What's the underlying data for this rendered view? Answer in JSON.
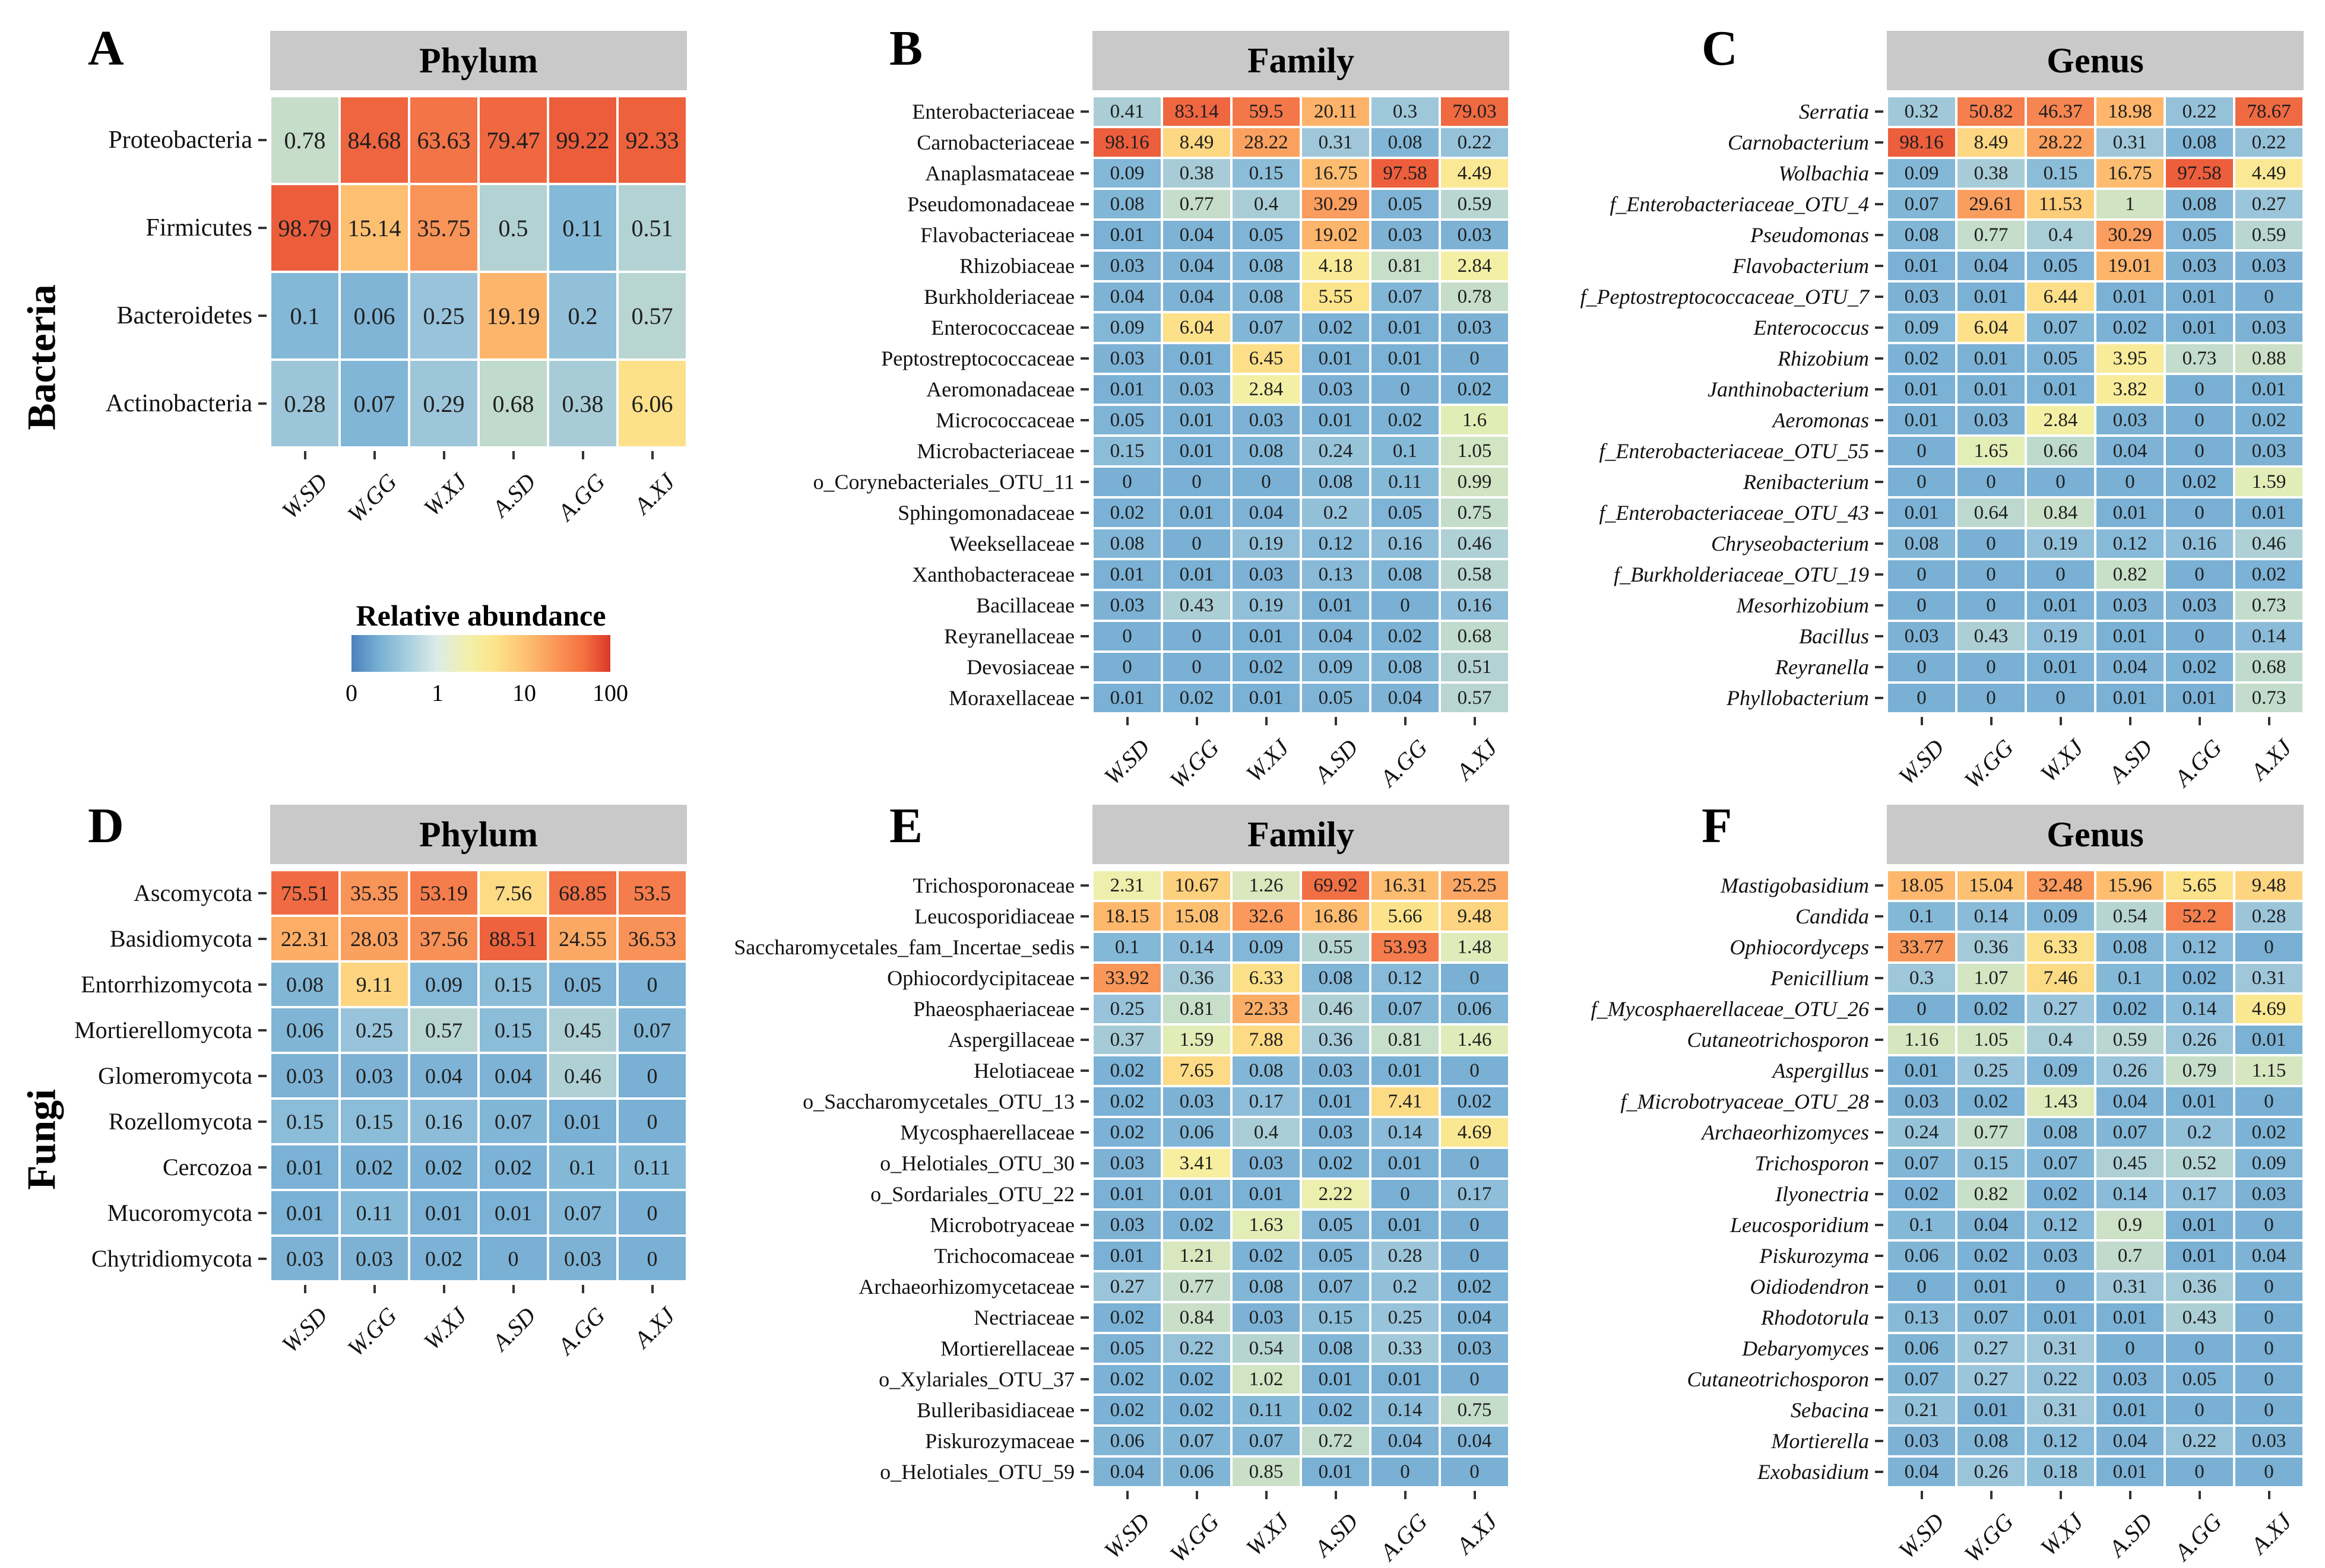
{
  "side_labels": {
    "top": "Bacteria",
    "bottom": "Fungi"
  },
  "samples": [
    "W.SD",
    "W.GG",
    "W.XJ",
    "A.SD",
    "A.GG",
    "A.XJ"
  ],
  "legend": {
    "title": "Relative abundance",
    "ticks": [
      "0",
      "1",
      "10",
      "100"
    ],
    "scale": "pseudo-log",
    "domain": [
      0,
      100
    ],
    "colors_low_to_high": [
      "#4c80bd",
      "#a8cfe0",
      "#f2f0ac",
      "#fdc273",
      "#f4703f",
      "#da382a"
    ]
  },
  "chart_data": [
    {
      "type": "heatmap",
      "panel_letter": "A",
      "title": "Phylum",
      "group": "Bacteria",
      "italic_rows": false,
      "categories": [
        "W.SD",
        "W.GG",
        "W.XJ",
        "A.SD",
        "A.GG",
        "A.XJ"
      ],
      "rows": [
        "Proteobacteria",
        "Firmicutes",
        "Bacteroidetes",
        "Actinobacteria"
      ],
      "values": [
        [
          "0.78",
          "84.68",
          "63.63",
          "79.47",
          "99.22",
          "92.33"
        ],
        [
          "98.79",
          "15.14",
          "35.75",
          "0.5",
          "0.11",
          "0.51"
        ],
        [
          "0.1",
          "0.06",
          "0.25",
          "19.19",
          "0.2",
          "0.57"
        ],
        [
          "0.28",
          "0.07",
          "0.29",
          "0.68",
          "0.38",
          "6.06"
        ]
      ]
    },
    {
      "type": "heatmap",
      "panel_letter": "B",
      "title": "Family",
      "group": "Bacteria",
      "italic_rows": false,
      "categories": [
        "W.SD",
        "W.GG",
        "W.XJ",
        "A.SD",
        "A.GG",
        "A.XJ"
      ],
      "rows": [
        "Enterobacteriaceae",
        "Carnobacteriaceae",
        "Anaplasmataceae",
        "Pseudomonadaceae",
        "Flavobacteriaceae",
        "Rhizobiaceae",
        "Burkholderiaceae",
        "Enterococcaceae",
        "Peptostreptococcaceae",
        "Aeromonadaceae",
        "Micrococcaceae",
        "Microbacteriaceae",
        "o_Corynebacteriales_OTU_11",
        "Sphingomonadaceae",
        "Weeksellaceae",
        "Xanthobacteraceae",
        "Bacillaceae",
        "Reyranellaceae",
        "Devosiaceae",
        "Moraxellaceae"
      ],
      "values": [
        [
          "0.41",
          "83.14",
          "59.5",
          "20.11",
          "0.3",
          "79.03"
        ],
        [
          "98.16",
          "8.49",
          "28.22",
          "0.31",
          "0.08",
          "0.22"
        ],
        [
          "0.09",
          "0.38",
          "0.15",
          "16.75",
          "97.58",
          "4.49"
        ],
        [
          "0.08",
          "0.77",
          "0.4",
          "30.29",
          "0.05",
          "0.59"
        ],
        [
          "0.01",
          "0.04",
          "0.05",
          "19.02",
          "0.03",
          "0.03"
        ],
        [
          "0.03",
          "0.04",
          "0.08",
          "4.18",
          "0.81",
          "2.84"
        ],
        [
          "0.04",
          "0.04",
          "0.08",
          "5.55",
          "0.07",
          "0.78"
        ],
        [
          "0.09",
          "6.04",
          "0.07",
          "0.02",
          "0.01",
          "0.03"
        ],
        [
          "0.03",
          "0.01",
          "6.45",
          "0.01",
          "0.01",
          "0"
        ],
        [
          "0.01",
          "0.03",
          "2.84",
          "0.03",
          "0",
          "0.02"
        ],
        [
          "0.05",
          "0.01",
          "0.03",
          "0.01",
          "0.02",
          "1.6"
        ],
        [
          "0.15",
          "0.01",
          "0.08",
          "0.24",
          "0.1",
          "1.05"
        ],
        [
          "0",
          "0",
          "0",
          "0.08",
          "0.11",
          "0.99"
        ],
        [
          "0.02",
          "0.01",
          "0.04",
          "0.2",
          "0.05",
          "0.75"
        ],
        [
          "0.08",
          "0",
          "0.19",
          "0.12",
          "0.16",
          "0.46"
        ],
        [
          "0.01",
          "0.01",
          "0.03",
          "0.13",
          "0.08",
          "0.58"
        ],
        [
          "0.03",
          "0.43",
          "0.19",
          "0.01",
          "0",
          "0.16"
        ],
        [
          "0",
          "0",
          "0.01",
          "0.04",
          "0.02",
          "0.68"
        ],
        [
          "0",
          "0",
          "0.02",
          "0.09",
          "0.08",
          "0.51"
        ],
        [
          "0.01",
          "0.02",
          "0.01",
          "0.05",
          "0.04",
          "0.57"
        ]
      ]
    },
    {
      "type": "heatmap",
      "panel_letter": "C",
      "title": "Genus",
      "group": "Bacteria",
      "italic_rows": true,
      "categories": [
        "W.SD",
        "W.GG",
        "W.XJ",
        "A.SD",
        "A.GG",
        "A.XJ"
      ],
      "rows": [
        "Serratia",
        "Carnobacterium",
        "Wolbachia",
        "f_Enterobacteriaceae_OTU_4",
        "Pseudomonas",
        "Flavobacterium",
        "f_Peptostreptococcaceae_OTU_7",
        "Enterococcus",
        "Rhizobium",
        "Janthinobacterium",
        "Aeromonas",
        "f_Enterobacteriaceae_OTU_55",
        "Renibacterium",
        "f_Enterobacteriaceae_OTU_43",
        "Chryseobacterium",
        "f_Burkholderiaceae_OTU_19",
        "Mesorhizobium",
        "Bacillus",
        "Reyranella",
        "Phyllobacterium"
      ],
      "values": [
        [
          "0.32",
          "50.82",
          "46.37",
          "18.98",
          "0.22",
          "78.67"
        ],
        [
          "98.16",
          "8.49",
          "28.22",
          "0.31",
          "0.08",
          "0.22"
        ],
        [
          "0.09",
          "0.38",
          "0.15",
          "16.75",
          "97.58",
          "4.49"
        ],
        [
          "0.07",
          "29.61",
          "11.53",
          "1",
          "0.08",
          "0.27"
        ],
        [
          "0.08",
          "0.77",
          "0.4",
          "30.29",
          "0.05",
          "0.59"
        ],
        [
          "0.01",
          "0.04",
          "0.05",
          "19.01",
          "0.03",
          "0.03"
        ],
        [
          "0.03",
          "0.01",
          "6.44",
          "0.01",
          "0.01",
          "0"
        ],
        [
          "0.09",
          "6.04",
          "0.07",
          "0.02",
          "0.01",
          "0.03"
        ],
        [
          "0.02",
          "0.01",
          "0.05",
          "3.95",
          "0.73",
          "0.88"
        ],
        [
          "0.01",
          "0.01",
          "0.01",
          "3.82",
          "0",
          "0.01"
        ],
        [
          "0.01",
          "0.03",
          "2.84",
          "0.03",
          "0",
          "0.02"
        ],
        [
          "0",
          "1.65",
          "0.66",
          "0.04",
          "0",
          "0.03"
        ],
        [
          "0",
          "0",
          "0",
          "0",
          "0.02",
          "1.59"
        ],
        [
          "0.01",
          "0.64",
          "0.84",
          "0.01",
          "0",
          "0.01"
        ],
        [
          "0.08",
          "0",
          "0.19",
          "0.12",
          "0.16",
          "0.46"
        ],
        [
          "0",
          "0",
          "0",
          "0.82",
          "0",
          "0.02"
        ],
        [
          "0",
          "0",
          "0.01",
          "0.03",
          "0.03",
          "0.73"
        ],
        [
          "0.03",
          "0.43",
          "0.19",
          "0.01",
          "0",
          "0.14"
        ],
        [
          "0",
          "0",
          "0.01",
          "0.04",
          "0.02",
          "0.68"
        ],
        [
          "0",
          "0",
          "0",
          "0.01",
          "0.01",
          "0.73"
        ]
      ]
    },
    {
      "type": "heatmap",
      "panel_letter": "D",
      "title": "Phylum",
      "group": "Fungi",
      "italic_rows": false,
      "categories": [
        "W.SD",
        "W.GG",
        "W.XJ",
        "A.SD",
        "A.GG",
        "A.XJ"
      ],
      "rows": [
        "Ascomycota",
        "Basidiomycota",
        "Entorrhizomycota",
        "Mortierellomycota",
        "Glomeromycota",
        "Rozellomycota",
        "Cercozoa",
        "Mucoromycota",
        "Chytridiomycota"
      ],
      "values": [
        [
          "75.51",
          "35.35",
          "53.19",
          "7.56",
          "68.85",
          "53.5"
        ],
        [
          "22.31",
          "28.03",
          "37.56",
          "88.51",
          "24.55",
          "36.53"
        ],
        [
          "0.08",
          "9.11",
          "0.09",
          "0.15",
          "0.05",
          "0"
        ],
        [
          "0.06",
          "0.25",
          "0.57",
          "0.15",
          "0.45",
          "0.07"
        ],
        [
          "0.03",
          "0.03",
          "0.04",
          "0.04",
          "0.46",
          "0"
        ],
        [
          "0.15",
          "0.15",
          "0.16",
          "0.07",
          "0.01",
          "0"
        ],
        [
          "0.01",
          "0.02",
          "0.02",
          "0.02",
          "0.1",
          "0.11"
        ],
        [
          "0.01",
          "0.11",
          "0.01",
          "0.01",
          "0.07",
          "0"
        ],
        [
          "0.03",
          "0.03",
          "0.02",
          "0",
          "0.03",
          "0"
        ]
      ]
    },
    {
      "type": "heatmap",
      "panel_letter": "E",
      "title": "Family",
      "group": "Fungi",
      "italic_rows": false,
      "categories": [
        "W.SD",
        "W.GG",
        "W.XJ",
        "A.SD",
        "A.GG",
        "A.XJ"
      ],
      "rows": [
        "Trichosporonaceae",
        "Leucosporidiaceae",
        "Saccharomycetales_fam_Incertae_sedis",
        "Ophiocordycipitaceae",
        "Phaeosphaeriaceae",
        "Aspergillaceae",
        "Helotiaceae",
        "o_Saccharomycetales_OTU_13",
        "Mycosphaerellaceae",
        "o_Helotiales_OTU_30",
        "o_Sordariales_OTU_22",
        "Microbotryaceae",
        "Trichocomaceae",
        "Archaeorhizomycetaceae",
        "Nectriaceae",
        "Mortierellaceae",
        "o_Xylariales_OTU_37",
        "Bulleribasidiaceae",
        "Piskurozymaceae",
        "o_Helotiales_OTU_59"
      ],
      "values": [
        [
          "2.31",
          "10.67",
          "1.26",
          "69.92",
          "16.31",
          "25.25"
        ],
        [
          "18.15",
          "15.08",
          "32.6",
          "16.86",
          "5.66",
          "9.48"
        ],
        [
          "0.1",
          "0.14",
          "0.09",
          "0.55",
          "53.93",
          "1.48"
        ],
        [
          "33.92",
          "0.36",
          "6.33",
          "0.08",
          "0.12",
          "0"
        ],
        [
          "0.25",
          "0.81",
          "22.33",
          "0.46",
          "0.07",
          "0.06"
        ],
        [
          "0.37",
          "1.59",
          "7.88",
          "0.36",
          "0.81",
          "1.46"
        ],
        [
          "0.02",
          "7.65",
          "0.08",
          "0.03",
          "0.01",
          "0"
        ],
        [
          "0.02",
          "0.03",
          "0.17",
          "0.01",
          "7.41",
          "0.02"
        ],
        [
          "0.02",
          "0.06",
          "0.4",
          "0.03",
          "0.14",
          "4.69"
        ],
        [
          "0.03",
          "3.41",
          "0.03",
          "0.02",
          "0.01",
          "0"
        ],
        [
          "0.01",
          "0.01",
          "0.01",
          "2.22",
          "0",
          "0.17"
        ],
        [
          "0.03",
          "0.02",
          "1.63",
          "0.05",
          "0.01",
          "0"
        ],
        [
          "0.01",
          "1.21",
          "0.02",
          "0.05",
          "0.28",
          "0"
        ],
        [
          "0.27",
          "0.77",
          "0.08",
          "0.07",
          "0.2",
          "0.02"
        ],
        [
          "0.02",
          "0.84",
          "0.03",
          "0.15",
          "0.25",
          "0.04"
        ],
        [
          "0.05",
          "0.22",
          "0.54",
          "0.08",
          "0.33",
          "0.03"
        ],
        [
          "0.02",
          "0.02",
          "1.02",
          "0.01",
          "0.01",
          "0"
        ],
        [
          "0.02",
          "0.02",
          "0.11",
          "0.02",
          "0.14",
          "0.75"
        ],
        [
          "0.06",
          "0.07",
          "0.07",
          "0.72",
          "0.04",
          "0.04"
        ],
        [
          "0.04",
          "0.06",
          "0.85",
          "0.01",
          "0",
          "0"
        ]
      ]
    },
    {
      "type": "heatmap",
      "panel_letter": "F",
      "title": "Genus",
      "group": "Fungi",
      "italic_rows": true,
      "categories": [
        "W.SD",
        "W.GG",
        "W.XJ",
        "A.SD",
        "A.GG",
        "A.XJ"
      ],
      "rows": [
        "Mastigobasidium",
        "Candida",
        "Ophiocordyceps",
        "Penicillium",
        "f_Mycosphaerellaceae_OTU_26",
        "Cutaneotrichosporon",
        "Aspergillus",
        "f_Microbotryaceae_OTU_28",
        "Archaeorhizomyces",
        "Trichosporon",
        "Ilyonectria",
        "Leucosporidium",
        "Piskurozyma",
        "Oidiodendron",
        "Rhodotorula",
        "Debaryomyces",
        "Cutaneotrichosporon",
        "Sebacina",
        "Mortierella",
        "Exobasidium"
      ],
      "values": [
        [
          "18.05",
          "15.04",
          "32.48",
          "15.96",
          "5.65",
          "9.48"
        ],
        [
          "0.1",
          "0.14",
          "0.09",
          "0.54",
          "52.2",
          "0.28"
        ],
        [
          "33.77",
          "0.36",
          "6.33",
          "0.08",
          "0.12",
          "0"
        ],
        [
          "0.3",
          "1.07",
          "7.46",
          "0.1",
          "0.02",
          "0.31"
        ],
        [
          "0",
          "0.02",
          "0.27",
          "0.02",
          "0.14",
          "4.69"
        ],
        [
          "1.16",
          "1.05",
          "0.4",
          "0.59",
          "0.26",
          "0.01"
        ],
        [
          "0.01",
          "0.25",
          "0.09",
          "0.26",
          "0.79",
          "1.15"
        ],
        [
          "0.03",
          "0.02",
          "1.43",
          "0.04",
          "0.01",
          "0"
        ],
        [
          "0.24",
          "0.77",
          "0.08",
          "0.07",
          "0.2",
          "0.02"
        ],
        [
          "0.07",
          "0.15",
          "0.07",
          "0.45",
          "0.52",
          "0.09"
        ],
        [
          "0.02",
          "0.82",
          "0.02",
          "0.14",
          "0.17",
          "0.03"
        ],
        [
          "0.1",
          "0.04",
          "0.12",
          "0.9",
          "0.01",
          "0"
        ],
        [
          "0.06",
          "0.02",
          "0.03",
          "0.7",
          "0.01",
          "0.04"
        ],
        [
          "0",
          "0.01",
          "0",
          "0.31",
          "0.36",
          "0"
        ],
        [
          "0.13",
          "0.07",
          "0.01",
          "0.01",
          "0.43",
          "0"
        ],
        [
          "0.06",
          "0.27",
          "0.31",
          "0",
          "0",
          "0"
        ],
        [
          "0.07",
          "0.27",
          "0.22",
          "0.03",
          "0.05",
          "0"
        ],
        [
          "0.21",
          "0.01",
          "0.31",
          "0.01",
          "0",
          "0"
        ],
        [
          "0.03",
          "0.08",
          "0.12",
          "0.04",
          "0.22",
          "0.03"
        ],
        [
          "0.04",
          "0.26",
          "0.18",
          "0.01",
          "0",
          "0"
        ]
      ]
    }
  ]
}
